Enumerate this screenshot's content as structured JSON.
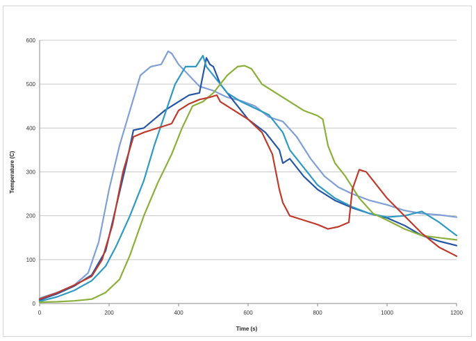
{
  "chart_data": {
    "type": "line",
    "xlabel": "Time (s)",
    "ylabel": "Temperature (C)",
    "xlim": [
      0,
      1200
    ],
    "ylim": [
      0,
      600
    ],
    "xticks": [
      "0",
      "200",
      "400",
      "600",
      "800",
      "1000",
      "1200"
    ],
    "yticks": [
      "0",
      "100",
      "200",
      "300",
      "400",
      "500",
      "600"
    ],
    "grid": "horizontal",
    "legend": "none",
    "series": [
      {
        "color": "#7f9fd6",
        "points": [
          [
            0,
            12
          ],
          [
            50,
            25
          ],
          [
            100,
            42
          ],
          [
            140,
            70
          ],
          [
            170,
            140
          ],
          [
            200,
            260
          ],
          [
            230,
            360
          ],
          [
            260,
            440
          ],
          [
            290,
            520
          ],
          [
            320,
            540
          ],
          [
            350,
            545
          ],
          [
            370,
            575
          ],
          [
            380,
            570
          ],
          [
            400,
            545
          ],
          [
            430,
            520
          ],
          [
            460,
            495
          ],
          [
            500,
            485
          ],
          [
            540,
            470
          ],
          [
            580,
            462
          ],
          [
            620,
            450
          ],
          [
            660,
            425
          ],
          [
            700,
            415
          ],
          [
            740,
            380
          ],
          [
            780,
            330
          ],
          [
            820,
            290
          ],
          [
            860,
            265
          ],
          [
            900,
            250
          ],
          [
            950,
            235
          ],
          [
            1000,
            225
          ],
          [
            1050,
            212
          ],
          [
            1100,
            205
          ],
          [
            1150,
            202
          ],
          [
            1200,
            197
          ]
        ]
      },
      {
        "color": "#2456a5",
        "points": [
          [
            0,
            8
          ],
          [
            50,
            22
          ],
          [
            100,
            40
          ],
          [
            150,
            65
          ],
          [
            190,
            120
          ],
          [
            220,
            220
          ],
          [
            250,
            320
          ],
          [
            270,
            395
          ],
          [
            300,
            400
          ],
          [
            330,
            420
          ],
          [
            360,
            440
          ],
          [
            400,
            460
          ],
          [
            430,
            475
          ],
          [
            460,
            480
          ],
          [
            480,
            560
          ],
          [
            490,
            545
          ],
          [
            500,
            540
          ],
          [
            520,
            500
          ],
          [
            560,
            460
          ],
          [
            600,
            420
          ],
          [
            650,
            390
          ],
          [
            690,
            350
          ],
          [
            700,
            320
          ],
          [
            720,
            330
          ],
          [
            760,
            290
          ],
          [
            800,
            260
          ],
          [
            850,
            235
          ],
          [
            900,
            218
          ],
          [
            950,
            205
          ],
          [
            1000,
            195
          ],
          [
            1050,
            178
          ],
          [
            1100,
            155
          ],
          [
            1150,
            142
          ],
          [
            1200,
            132
          ]
        ]
      },
      {
        "color": "#2e9ac4",
        "points": [
          [
            0,
            5
          ],
          [
            50,
            15
          ],
          [
            100,
            30
          ],
          [
            150,
            52
          ],
          [
            190,
            85
          ],
          [
            220,
            130
          ],
          [
            260,
            200
          ],
          [
            300,
            280
          ],
          [
            330,
            360
          ],
          [
            360,
            430
          ],
          [
            390,
            500
          ],
          [
            420,
            540
          ],
          [
            450,
            540
          ],
          [
            470,
            565
          ],
          [
            480,
            540
          ],
          [
            500,
            520
          ],
          [
            540,
            480
          ],
          [
            580,
            460
          ],
          [
            620,
            445
          ],
          [
            660,
            430
          ],
          [
            700,
            390
          ],
          [
            720,
            350
          ],
          [
            760,
            310
          ],
          [
            800,
            270
          ],
          [
            850,
            240
          ],
          [
            900,
            220
          ],
          [
            950,
            205
          ],
          [
            1000,
            197
          ],
          [
            1050,
            200
          ],
          [
            1100,
            210
          ],
          [
            1150,
            185
          ],
          [
            1200,
            155
          ]
        ]
      },
      {
        "color": "#8bb03a",
        "points": [
          [
            0,
            3
          ],
          [
            50,
            4
          ],
          [
            100,
            6
          ],
          [
            150,
            10
          ],
          [
            190,
            25
          ],
          [
            230,
            55
          ],
          [
            260,
            110
          ],
          [
            300,
            200
          ],
          [
            340,
            275
          ],
          [
            380,
            340
          ],
          [
            410,
            400
          ],
          [
            440,
            450
          ],
          [
            470,
            460
          ],
          [
            500,
            480
          ],
          [
            520,
            500
          ],
          [
            540,
            520
          ],
          [
            570,
            540
          ],
          [
            590,
            542
          ],
          [
            610,
            535
          ],
          [
            640,
            500
          ],
          [
            680,
            480
          ],
          [
            720,
            460
          ],
          [
            760,
            440
          ],
          [
            800,
            428
          ],
          [
            815,
            420
          ],
          [
            830,
            360
          ],
          [
            850,
            320
          ],
          [
            880,
            290
          ],
          [
            920,
            240
          ],
          [
            960,
            205
          ],
          [
            1000,
            190
          ],
          [
            1050,
            170
          ],
          [
            1100,
            155
          ],
          [
            1150,
            150
          ],
          [
            1200,
            145
          ]
        ]
      },
      {
        "color": "#c0392b",
        "points": [
          [
            0,
            10
          ],
          [
            50,
            24
          ],
          [
            100,
            42
          ],
          [
            150,
            62
          ],
          [
            180,
            100
          ],
          [
            210,
            180
          ],
          [
            240,
            300
          ],
          [
            270,
            380
          ],
          [
            300,
            390
          ],
          [
            340,
            400
          ],
          [
            380,
            410
          ],
          [
            400,
            440
          ],
          [
            430,
            455
          ],
          [
            460,
            465
          ],
          [
            490,
            470
          ],
          [
            510,
            475
          ],
          [
            520,
            460
          ],
          [
            560,
            440
          ],
          [
            600,
            420
          ],
          [
            640,
            390
          ],
          [
            670,
            340
          ],
          [
            690,
            260
          ],
          [
            700,
            230
          ],
          [
            720,
            200
          ],
          [
            760,
            190
          ],
          [
            800,
            180
          ],
          [
            830,
            170
          ],
          [
            860,
            175
          ],
          [
            890,
            185
          ],
          [
            900,
            260
          ],
          [
            920,
            305
          ],
          [
            940,
            300
          ],
          [
            970,
            270
          ],
          [
            1000,
            240
          ],
          [
            1050,
            200
          ],
          [
            1100,
            160
          ],
          [
            1150,
            128
          ],
          [
            1200,
            108
          ]
        ]
      }
    ]
  }
}
